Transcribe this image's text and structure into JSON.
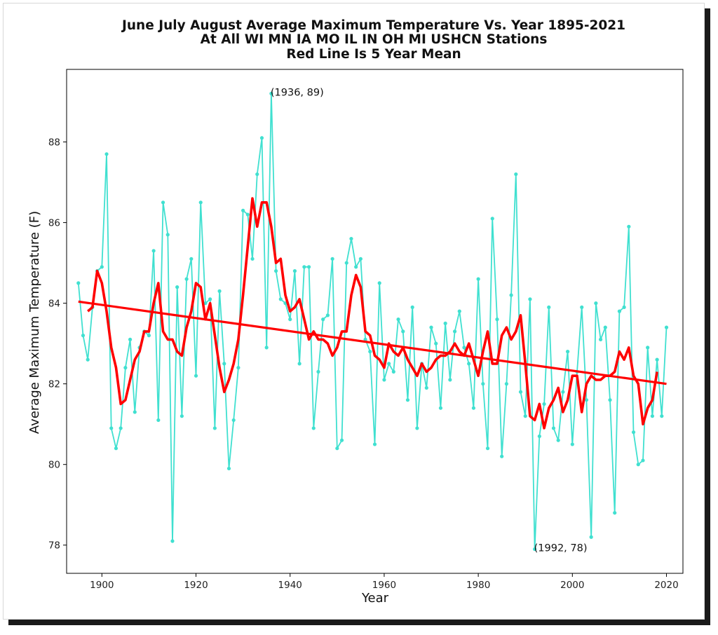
{
  "chart_data": {
    "type": "line",
    "title_lines": [
      "June July August Average Maximum Temperature Vs. Year 1895-2021",
      "At All WI MN IA MO IL IN OH MI USHCN Stations",
      "Red Line Is 5 Year Mean"
    ],
    "xlabel": "Year",
    "ylabel": "Average Maximum Temperature (F)",
    "xlim": [
      1892.5,
      2023.5
    ],
    "ylim": [
      77.3,
      89.8
    ],
    "x_ticks": [
      1900,
      1920,
      1940,
      1960,
      1980,
      2000,
      2020
    ],
    "y_ticks": [
      78,
      80,
      82,
      84,
      86,
      88
    ],
    "grid": false,
    "legend": "none",
    "colors": {
      "annual": "#40e0d0",
      "mean": "#ff0000",
      "trend": "#ff0000"
    },
    "series": [
      {
        "role": "annual",
        "x": [
          1895,
          1896,
          1897,
          1898,
          1899,
          1900,
          1901,
          1902,
          1903,
          1904,
          1905,
          1906,
          1907,
          1908,
          1909,
          1910,
          1911,
          1912,
          1913,
          1914,
          1915,
          1916,
          1917,
          1918,
          1919,
          1920,
          1921,
          1922,
          1923,
          1924,
          1925,
          1926,
          1927,
          1928,
          1929,
          1930,
          1931,
          1932,
          1933,
          1934,
          1935,
          1936,
          1937,
          1938,
          1939,
          1940,
          1941,
          1942,
          1943,
          1944,
          1945,
          1946,
          1947,
          1948,
          1949,
          1950,
          1951,
          1952,
          1953,
          1954,
          1955,
          1956,
          1957,
          1958,
          1959,
          1960,
          1961,
          1962,
          1963,
          1964,
          1965,
          1966,
          1967,
          1968,
          1969,
          1970,
          1971,
          1972,
          1973,
          1974,
          1975,
          1976,
          1977,
          1978,
          1979,
          1980,
          1981,
          1982,
          1983,
          1984,
          1985,
          1986,
          1987,
          1988,
          1989,
          1990,
          1991,
          1992,
          1993,
          1994,
          1995,
          1996,
          1997,
          1998,
          1999,
          2000,
          2001,
          2002,
          2003,
          2004,
          2005,
          2006,
          2007,
          2008,
          2009,
          2010,
          2011,
          2012,
          2013,
          2014,
          2015,
          2016,
          2017,
          2018,
          2019,
          2020
        ],
        "y": [
          84.5,
          83.2,
          82.6,
          83.9,
          84.8,
          84.9,
          87.7,
          80.9,
          80.4,
          80.9,
          82.4,
          83.1,
          81.3,
          82.9,
          83.3,
          83.2,
          85.3,
          81.1,
          86.5,
          85.7,
          78.1,
          84.4,
          81.2,
          84.6,
          85.1,
          82.2,
          86.5,
          84.0,
          84.1,
          80.9,
          84.3,
          82.5,
          79.9,
          81.1,
          82.4,
          86.3,
          86.2,
          85.1,
          87.2,
          88.1,
          82.9,
          89.2,
          84.8,
          84.1,
          84.0,
          83.6,
          84.8,
          82.5,
          84.9,
          84.9,
          80.9,
          82.3,
          83.6,
          83.7,
          85.1,
          80.4,
          80.6,
          85.0,
          85.6,
          84.9,
          85.1,
          83.1,
          82.8,
          80.5,
          84.5,
          82.1,
          82.5,
          82.3,
          83.6,
          83.3,
          81.6,
          83.9,
          80.9,
          82.5,
          81.9,
          83.4,
          83.0,
          81.4,
          83.5,
          82.1,
          83.3,
          83.8,
          82.9,
          82.5,
          81.4,
          84.6,
          82.0,
          80.4,
          86.1,
          83.6,
          80.2,
          82.0,
          84.2,
          87.2,
          81.8,
          81.2,
          84.1,
          77.9,
          80.7,
          81.5,
          83.9,
          80.9,
          80.6,
          81.8,
          82.8,
          80.5,
          82.3,
          83.9,
          81.6,
          78.2,
          84.0,
          83.1,
          83.4,
          81.6,
          78.8,
          83.8,
          83.9,
          85.9,
          80.8,
          80.0,
          80.1,
          82.9,
          81.2,
          82.6,
          81.2,
          83.4
        ]
      },
      {
        "role": "mean",
        "x": [
          1897,
          1898,
          1899,
          1900,
          1901,
          1902,
          1903,
          1904,
          1905,
          1906,
          1907,
          1908,
          1909,
          1910,
          1911,
          1912,
          1913,
          1914,
          1915,
          1916,
          1917,
          1918,
          1919,
          1920,
          1921,
          1922,
          1923,
          1924,
          1925,
          1926,
          1927,
          1928,
          1929,
          1930,
          1931,
          1932,
          1933,
          1934,
          1935,
          1936,
          1937,
          1938,
          1939,
          1940,
          1941,
          1942,
          1943,
          1944,
          1945,
          1946,
          1947,
          1948,
          1949,
          1950,
          1951,
          1952,
          1953,
          1954,
          1955,
          1956,
          1957,
          1958,
          1959,
          1960,
          1961,
          1962,
          1963,
          1964,
          1965,
          1966,
          1967,
          1968,
          1969,
          1970,
          1971,
          1972,
          1973,
          1974,
          1975,
          1976,
          1977,
          1978,
          1979,
          1980,
          1981,
          1982,
          1983,
          1984,
          1985,
          1986,
          1987,
          1988,
          1989,
          1990,
          1991,
          1992,
          1993,
          1994,
          1995,
          1996,
          1997,
          1998,
          1999,
          2000,
          2001,
          2002,
          2003,
          2004,
          2005,
          2006,
          2007,
          2008,
          2009,
          2010,
          2011,
          2012,
          2013,
          2014,
          2015,
          2016,
          2017,
          2018
        ],
        "y": [
          83.8,
          83.9,
          84.8,
          84.5,
          83.8,
          82.9,
          82.4,
          81.5,
          81.6,
          82.1,
          82.6,
          82.8,
          83.3,
          83.3,
          84.0,
          84.5,
          83.3,
          83.1,
          83.1,
          82.8,
          82.7,
          83.4,
          83.8,
          84.5,
          84.4,
          83.6,
          84.0,
          83.2,
          82.4,
          81.8,
          82.1,
          82.5,
          83.1,
          84.2,
          85.4,
          86.6,
          85.9,
          86.5,
          86.5,
          85.9,
          85.0,
          85.1,
          84.2,
          83.8,
          83.9,
          84.1,
          83.6,
          83.1,
          83.3,
          83.1,
          83.1,
          83.0,
          82.7,
          82.9,
          83.3,
          83.3,
          84.2,
          84.7,
          84.4,
          83.3,
          83.2,
          82.7,
          82.6,
          82.4,
          83.0,
          82.8,
          82.7,
          82.9,
          82.6,
          82.4,
          82.2,
          82.5,
          82.3,
          82.4,
          82.6,
          82.7,
          82.7,
          82.8,
          83.0,
          82.8,
          82.7,
          83.0,
          82.6,
          82.2,
          82.8,
          83.3,
          82.5,
          82.5,
          83.2,
          83.4,
          83.1,
          83.3,
          83.7,
          82.5,
          81.2,
          81.1,
          81.5,
          80.9,
          81.4,
          81.6,
          81.9,
          81.3,
          81.6,
          82.2,
          82.2,
          81.3,
          82.0,
          82.2,
          82.1,
          82.1,
          82.2,
          82.2,
          82.3,
          82.8,
          82.6,
          82.9,
          82.2,
          82.0,
          81.0,
          81.4,
          81.6,
          82.3
        ]
      },
      {
        "role": "trend",
        "x": [
          1895,
          2020
        ],
        "y": [
          84.04,
          82.0
        ]
      }
    ],
    "annotations": [
      {
        "text": "(1936, 89)",
        "x": 1936,
        "y": 89.2
      },
      {
        "text": "(1992, 78)",
        "x": 1992,
        "y": 77.9
      }
    ]
  }
}
